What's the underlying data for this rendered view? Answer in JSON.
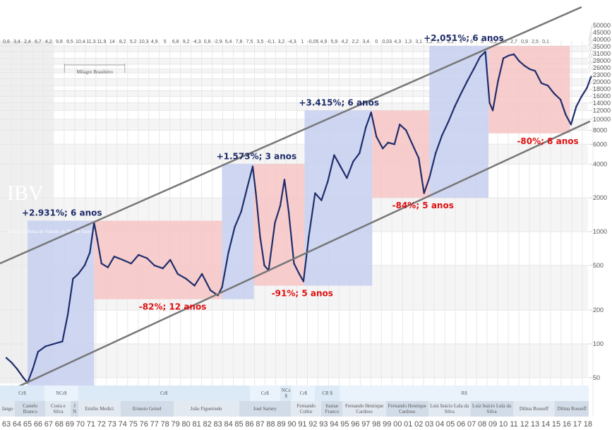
{
  "chart_data": {
    "type": "line",
    "title": "IBV",
    "subtitle": "Indice da Bolsa de Valores do Rio de Janeiro",
    "yscale": "log",
    "ylim": [
      35,
      55000
    ],
    "xlim": [
      1962.4,
      2018.4
    ],
    "yticks": [
      50,
      100,
      200,
      500,
      1000,
      2000,
      4000,
      6000,
      8000,
      10000,
      12000,
      14000,
      16000,
      18000,
      20000,
      23000,
      26000,
      28000,
      31000,
      35000,
      40000,
      45000,
      50000
    ],
    "xtick_labels": [
      "63",
      "64",
      "65",
      "66",
      "67",
      "68",
      "69",
      "70",
      "71",
      "72",
      "73",
      "74",
      "75",
      "76",
      "77",
      "78",
      "79",
      "80",
      "81",
      "82",
      "83",
      "84",
      "85",
      "86",
      "87",
      "88",
      "89",
      "90",
      "91",
      "92",
      "93",
      "94",
      "95",
      "96",
      "97",
      "98",
      "99",
      "00",
      "01",
      "02",
      "03",
      "04",
      "05",
      "06",
      "07",
      "08",
      "09",
      "10",
      "11",
      "12",
      "13",
      "14",
      "15",
      "16",
      "17",
      "18"
    ],
    "gdp_growth_row": [
      "0,6",
      "3,4",
      "2,4",
      "6,7",
      "4,2",
      "9,8",
      "9,5",
      "10,4",
      "11,3",
      "11,9",
      "14",
      "8,2",
      "5,2",
      "10,3",
      "4,9",
      "5",
      "6,8",
      "9,2",
      "-4,3",
      "0,8",
      "-2,9",
      "5,4",
      "7,8",
      "7,5",
      "3,5",
      "-0,1",
      "3,2",
      "-4,3",
      "1",
      "-0,05",
      "4,9",
      "5,9",
      "4,2",
      "2,2",
      "3,4",
      "0",
      "0,03",
      "4,3",
      "1,3",
      "3,1",
      "1,2",
      "5,7",
      "3,1",
      "4",
      "6",
      "5",
      "-0,2",
      "7,6",
      "2,7",
      "0,9",
      "2,5",
      "0,1"
    ],
    "series": [
      {
        "name": "IBV",
        "x": [
          1963,
          1963.5,
          1964,
          1964.6,
          1965,
          1965.5,
          1966,
          1966.7,
          1967.5,
          1968.3,
          1968.8,
          1969.3,
          1969.8,
          1970.4,
          1970.9,
          1971.3,
          1971.6,
          1972,
          1972.6,
          1973.2,
          1974,
          1974.8,
          1975.5,
          1976.3,
          1977,
          1977.8,
          1978.5,
          1979.2,
          1980,
          1980.8,
          1981.5,
          1982.3,
          1983,
          1983.4,
          1984,
          1984.6,
          1985.2,
          1985.8,
          1986.3,
          1986.6,
          1987,
          1987.4,
          1987.8,
          1988.4,
          1988.9,
          1989.3,
          1989.7,
          1990.2,
          1990.7,
          1991.1,
          1991.6,
          1992.2,
          1992.8,
          1993.4,
          1994,
          1994.6,
          1995.2,
          1995.8,
          1996.4,
          1997,
          1997.5,
          1998,
          1998.6,
          1999.1,
          1999.7,
          2000.2,
          2000.8,
          2001.4,
          2002,
          2002.5,
          2003,
          2003.6,
          2004.2,
          2004.8,
          2005.4,
          2006,
          2006.6,
          2007.2,
          2007.8,
          2008.3,
          2008.7,
          2009,
          2009.5,
          2010,
          2010.5,
          2011,
          2011.5,
          2012,
          2012.5,
          2013,
          2013.6,
          2014.2,
          2014.8,
          2015.4,
          2015.9,
          2016.4,
          2016.9,
          2017.4,
          2017.9,
          2018.3
        ],
        "y": [
          75,
          68,
          60,
          50,
          45,
          60,
          85,
          95,
          100,
          105,
          180,
          380,
          420,
          500,
          650,
          1200,
          850,
          520,
          480,
          600,
          560,
          520,
          620,
          580,
          500,
          470,
          560,
          420,
          380,
          330,
          420,
          300,
          270,
          320,
          650,
          1100,
          1500,
          2500,
          3800,
          2200,
          900,
          500,
          450,
          1200,
          1700,
          2900,
          1500,
          520,
          420,
          360,
          900,
          2200,
          1900,
          2800,
          4800,
          3800,
          3000,
          4200,
          5000,
          8500,
          11500,
          7000,
          5500,
          6200,
          6000,
          9000,
          8000,
          6000,
          4500,
          2200,
          3000,
          5000,
          7200,
          9500,
          13000,
          17000,
          22000,
          28000,
          36000,
          40000,
          14000,
          12000,
          22000,
          35000,
          37000,
          38000,
          33000,
          30000,
          28000,
          27000,
          21000,
          20000,
          17000,
          15000,
          11000,
          9000,
          13000,
          16000,
          19000,
          24000
        ]
      }
    ],
    "phases": [
      {
        "type": "bull",
        "label": "+2.931%; 6 anos",
        "x": [
          1965.0,
          1971.3
        ],
        "y": [
          42,
          1250
        ]
      },
      {
        "type": "bear",
        "label": "-82%; 12 anos",
        "x": [
          1971.3,
          1983.4
        ],
        "y": [
          250,
          1250
        ]
      },
      {
        "type": "bull",
        "label": "+1.573%; 3 anos",
        "x": [
          1983.4,
          1986.4
        ],
        "y": [
          250,
          4000
        ]
      },
      {
        "type": "bear",
        "label": "-91%; 5 anos",
        "x": [
          1986.4,
          1991.2
        ],
        "y": [
          330,
          4000
        ]
      },
      {
        "type": "bull",
        "label": "+3.415%; 6 anos",
        "x": [
          1991.2,
          1997.6
        ],
        "y": [
          330,
          12000
        ]
      },
      {
        "type": "bear",
        "label": "-84%; 5 anos",
        "x": [
          1997.6,
          2003.0
        ],
        "y": [
          2000,
          12000
        ]
      },
      {
        "type": "bull",
        "label": "+2.051%; 6 anos",
        "x": [
          2003.0,
          2008.6
        ],
        "y": [
          2000,
          45000
        ]
      },
      {
        "type": "bear",
        "label": "-80%; 8 anos",
        "x": [
          2008.6,
          2016.3
        ],
        "y": [
          7500,
          45000
        ]
      }
    ],
    "channel": {
      "upper": {
        "x": [
          1962.4,
          2017.4
        ],
        "y": [
          520,
          100000
        ]
      },
      "lower": {
        "x": [
          1962.4,
          2018.2
        ],
        "y": [
          35,
          9600
        ]
      }
    },
    "annotations": {
      "milagre": "Milagre Brasileiro",
      "milagre_range": [
        1968.5,
        1974.2
      ]
    },
    "currency_row": [
      {
        "label": "Cr$",
        "x": [
          1962.4,
          1966.6
        ]
      },
      {
        "label": "NCr$",
        "x": [
          1966.6,
          1969.8
        ]
      },
      {
        "label": "Cr$",
        "x": [
          1969.8,
          1986
        ]
      },
      {
        "label": "Cz$",
        "x": [
          1986,
          1988.9
        ]
      },
      {
        "label": "NCz $",
        "x": [
          1988.9,
          1990
        ]
      },
      {
        "label": "Cr$",
        "x": [
          1990,
          1992.2
        ]
      },
      {
        "label": "CR $",
        "x": [
          1992.2,
          1994.5
        ]
      },
      {
        "label": "R$",
        "x": [
          1994.5,
          2018.1
        ]
      }
    ],
    "president_row": [
      {
        "label": "Jango",
        "x": [
          1962.4,
          1963.8
        ]
      },
      {
        "label": "Castelo Branco",
        "x": [
          1963.8,
          1966.7
        ]
      },
      {
        "label": "Costa e Silva",
        "x": [
          1966.7,
          1969.1
        ]
      },
      {
        "label": "J N",
        "x": [
          1969.1,
          1969.8
        ]
      },
      {
        "label": "Emilio Medici",
        "x": [
          1969.8,
          1973.8
        ]
      },
      {
        "label": "Ernesto Geisel",
        "x": [
          1973.8,
          1978.8
        ]
      },
      {
        "label": "João Figueiredo",
        "x": [
          1978.8,
          1985
        ]
      },
      {
        "label": "José Sarney",
        "x": [
          1985,
          1989.9
        ]
      },
      {
        "label": "Fernando Collor",
        "x": [
          1989.9,
          1992.8
        ]
      },
      {
        "label": "Itamar Franco",
        "x": [
          1992.8,
          1994.8
        ]
      },
      {
        "label": "Fernando Henrique Cardoso",
        "x": [
          1994.8,
          1998.9
        ]
      },
      {
        "label": "Fernando Henrique Cardoso",
        "x": [
          1998.9,
          2002.9
        ]
      },
      {
        "label": "Luiz Inácio Lula da Silva",
        "x": [
          2002.9,
          2006.9
        ]
      },
      {
        "label": "Luiz Inácio Lula da Silva",
        "x": [
          2006.9,
          2010.9
        ]
      },
      {
        "label": "Dilma Rouseff",
        "x": [
          2010.9,
          2014.9
        ]
      },
      {
        "label": "Dilma Rouseff",
        "x": [
          2014.9,
          2018.1
        ]
      }
    ],
    "colors": {
      "bull": "#c5cff0",
      "bear": "#f6c4c4",
      "line": "#1f2d6b",
      "channel": "#777777",
      "cur": "#dbeaf6",
      "pres": "#e3e9f1",
      "pres_alt": "#d2dce8"
    }
  }
}
